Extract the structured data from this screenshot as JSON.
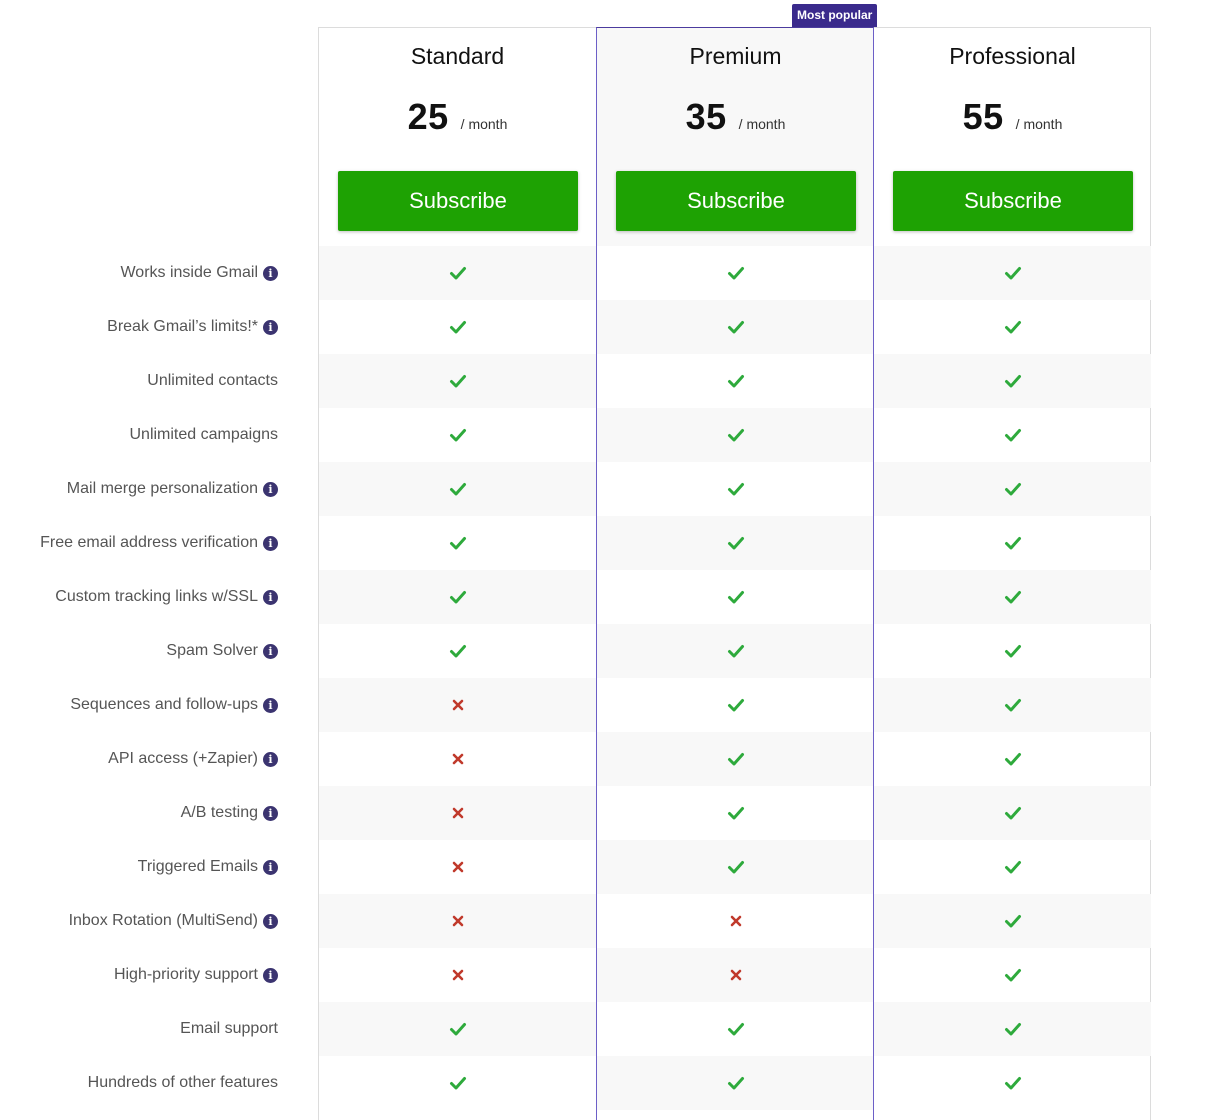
{
  "badge": "Most popular",
  "plans": [
    {
      "name": "Standard",
      "amount": "25",
      "period": "/ month",
      "button": "Subscribe"
    },
    {
      "name": "Premium",
      "amount": "35",
      "period": "/ month",
      "button": "Subscribe"
    },
    {
      "name": "Professional",
      "amount": "55",
      "period": "/ month",
      "button": "Subscribe"
    }
  ],
  "features": [
    {
      "label": "Works inside Gmail",
      "info": true,
      "values": [
        true,
        true,
        true
      ]
    },
    {
      "label": "Break Gmail’s limits!*",
      "info": true,
      "values": [
        true,
        true,
        true
      ]
    },
    {
      "label": "Unlimited contacts",
      "info": false,
      "values": [
        true,
        true,
        true
      ]
    },
    {
      "label": "Unlimited campaigns",
      "info": false,
      "values": [
        true,
        true,
        true
      ]
    },
    {
      "label": "Mail merge personalization",
      "info": true,
      "values": [
        true,
        true,
        true
      ]
    },
    {
      "label": "Free email address verification",
      "info": true,
      "values": [
        true,
        true,
        true
      ]
    },
    {
      "label": "Custom tracking links w/SSL",
      "info": true,
      "values": [
        true,
        true,
        true
      ]
    },
    {
      "label": "Spam Solver",
      "info": true,
      "values": [
        true,
        true,
        true
      ]
    },
    {
      "label": "Sequences and follow-ups",
      "info": true,
      "values": [
        false,
        true,
        true
      ]
    },
    {
      "label": "API access (+Zapier)",
      "info": true,
      "values": [
        false,
        true,
        true
      ]
    },
    {
      "label": "A/B testing",
      "info": true,
      "values": [
        false,
        true,
        true
      ]
    },
    {
      "label": "Triggered Emails",
      "info": true,
      "values": [
        false,
        true,
        true
      ]
    },
    {
      "label": "Inbox Rotation (MultiSend)",
      "info": true,
      "values": [
        false,
        false,
        true
      ]
    },
    {
      "label": "High-priority support",
      "info": true,
      "values": [
        false,
        false,
        true
      ]
    },
    {
      "label": "Email support",
      "info": false,
      "values": [
        true,
        true,
        true
      ]
    },
    {
      "label": "Hundreds of other features",
      "info": false,
      "values": [
        true,
        true,
        true
      ]
    }
  ],
  "icons": {
    "info": "info-icon",
    "included": "check-icon",
    "excluded": "cross-icon"
  },
  "colors": {
    "check": "#2eaa3c",
    "cross": "#c0392b",
    "button": "#1ea203",
    "accent": "#3a2a8c"
  }
}
